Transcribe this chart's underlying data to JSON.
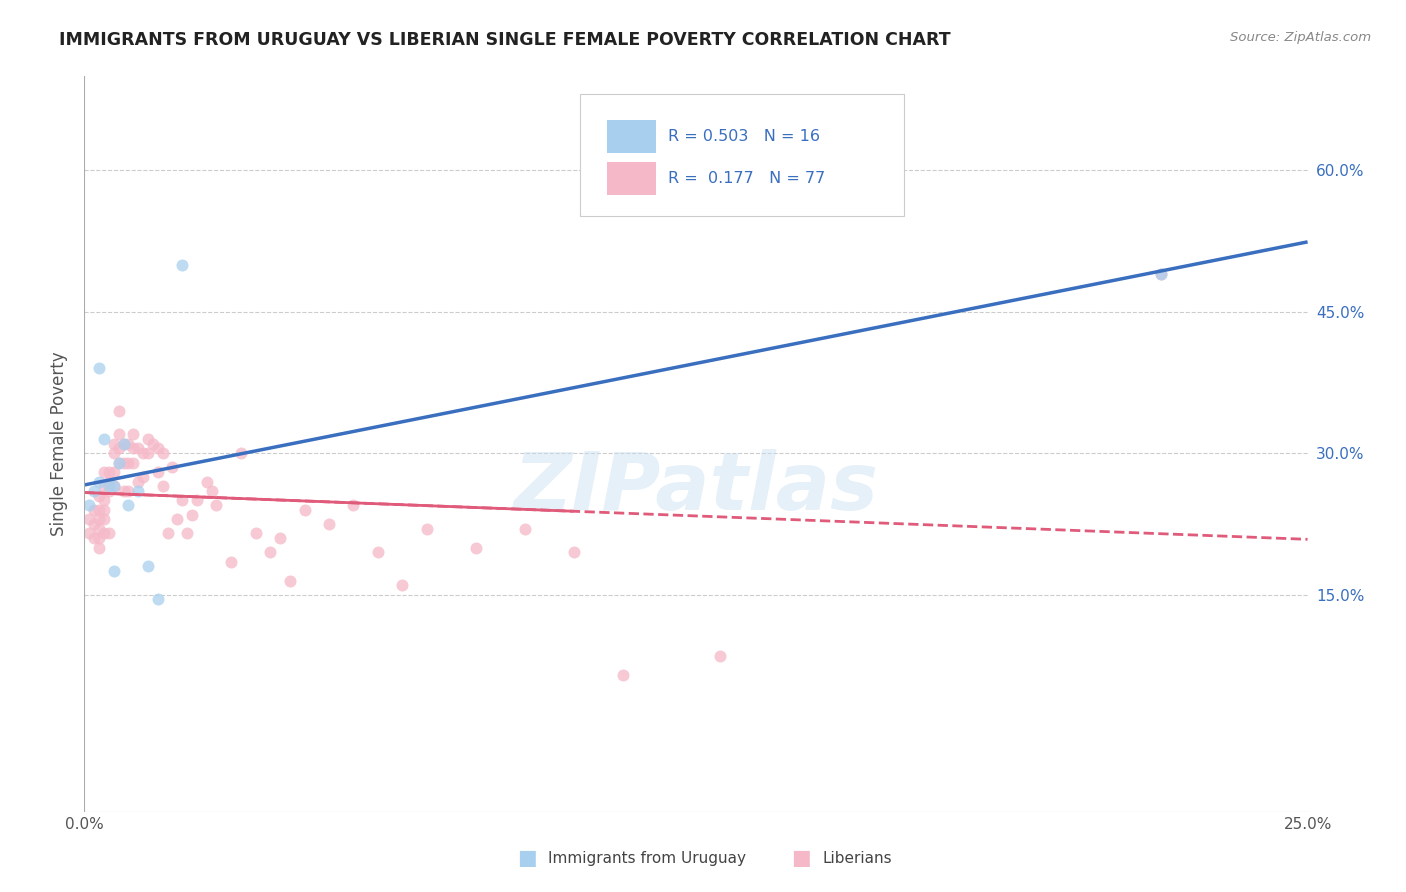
{
  "title": "IMMIGRANTS FROM URUGUAY VS LIBERIAN SINGLE FEMALE POVERTY CORRELATION CHART",
  "source": "Source: ZipAtlas.com",
  "ylabel": "Single Female Poverty",
  "xlim": [
    0.0,
    0.25
  ],
  "ylim": [
    -0.08,
    0.7
  ],
  "ytick_positions": [
    0.15,
    0.3,
    0.45,
    0.6
  ],
  "ytick_labels": [
    "15.0%",
    "30.0%",
    "45.0%",
    "60.0%"
  ],
  "watermark": "ZIPatlas",
  "color_uruguay": "#A8D0EE",
  "color_liberian": "#F5B8C8",
  "color_line_uruguay": "#3A6FBF",
  "color_line_liberian": "#E05A7A",
  "marker_size": 75,
  "uruguay_x": [
    0.001,
    0.002,
    0.003,
    0.003,
    0.004,
    0.005,
    0.006,
    0.006,
    0.007,
    0.008,
    0.009,
    0.011,
    0.013,
    0.015,
    0.02,
    0.22
  ],
  "uruguay_y": [
    0.245,
    0.26,
    0.39,
    0.27,
    0.315,
    0.265,
    0.265,
    0.175,
    0.29,
    0.31,
    0.245,
    0.26,
    0.18,
    0.145,
    0.5,
    0.49
  ],
  "liberian_x": [
    0.001,
    0.001,
    0.002,
    0.002,
    0.002,
    0.003,
    0.003,
    0.003,
    0.003,
    0.003,
    0.003,
    0.004,
    0.004,
    0.004,
    0.004,
    0.004,
    0.004,
    0.005,
    0.005,
    0.005,
    0.005,
    0.006,
    0.006,
    0.006,
    0.006,
    0.007,
    0.007,
    0.007,
    0.007,
    0.008,
    0.008,
    0.008,
    0.009,
    0.009,
    0.009,
    0.01,
    0.01,
    0.01,
    0.011,
    0.011,
    0.012,
    0.012,
    0.013,
    0.013,
    0.014,
    0.015,
    0.015,
    0.016,
    0.016,
    0.017,
    0.018,
    0.019,
    0.02,
    0.021,
    0.022,
    0.023,
    0.025,
    0.026,
    0.027,
    0.03,
    0.032,
    0.035,
    0.038,
    0.04,
    0.042,
    0.045,
    0.05,
    0.055,
    0.06,
    0.065,
    0.07,
    0.08,
    0.09,
    0.1,
    0.11,
    0.13,
    0.22
  ],
  "liberian_y": [
    0.23,
    0.215,
    0.24,
    0.225,
    0.21,
    0.255,
    0.24,
    0.23,
    0.22,
    0.21,
    0.2,
    0.28,
    0.265,
    0.25,
    0.24,
    0.23,
    0.215,
    0.28,
    0.27,
    0.26,
    0.215,
    0.31,
    0.3,
    0.28,
    0.265,
    0.345,
    0.32,
    0.305,
    0.29,
    0.29,
    0.31,
    0.26,
    0.31,
    0.29,
    0.26,
    0.32,
    0.305,
    0.29,
    0.305,
    0.27,
    0.3,
    0.275,
    0.315,
    0.3,
    0.31,
    0.305,
    0.28,
    0.3,
    0.265,
    0.215,
    0.285,
    0.23,
    0.25,
    0.215,
    0.235,
    0.25,
    0.27,
    0.26,
    0.245,
    0.185,
    0.3,
    0.215,
    0.195,
    0.21,
    0.165,
    0.24,
    0.225,
    0.245,
    0.195,
    0.16,
    0.22,
    0.2,
    0.22,
    0.195,
    0.065,
    0.085,
    0.49
  ]
}
